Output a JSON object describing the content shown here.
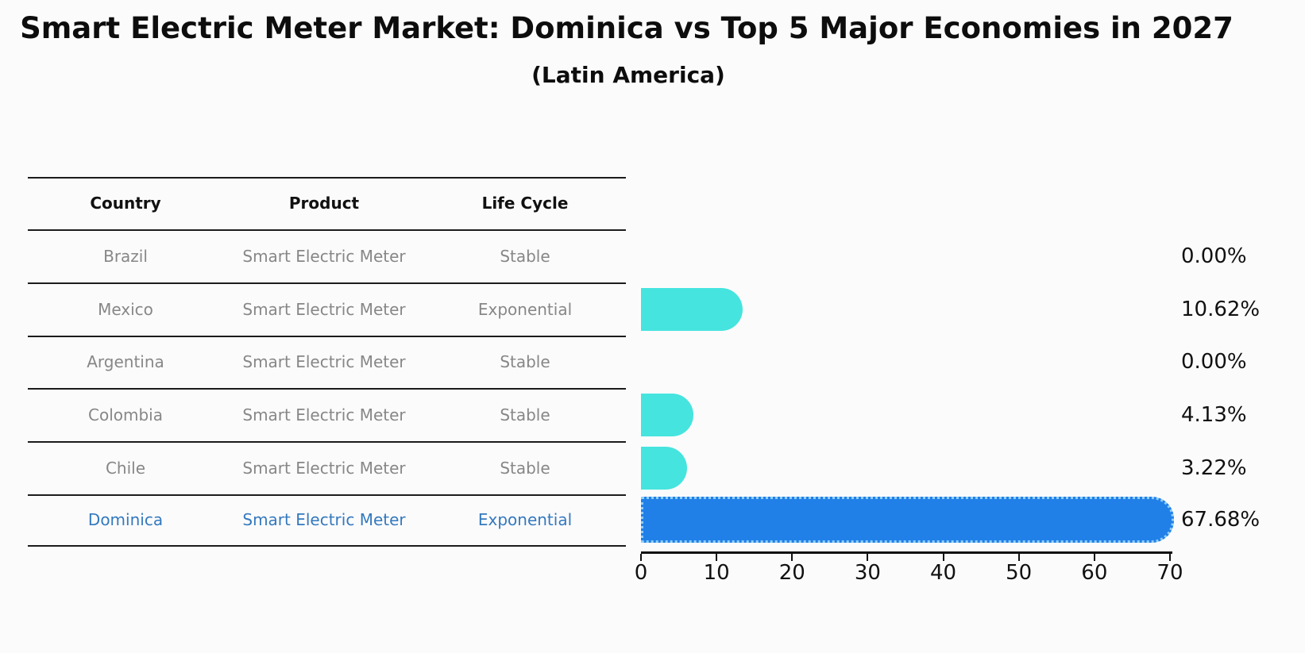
{
  "header": {
    "title": "Smart Electric Meter Market: Dominica vs Top 5 Major Economies in 2027",
    "subtitle": "(Latin America)"
  },
  "table": {
    "headers": [
      "Country",
      "Product",
      "Life Cycle"
    ],
    "rows": [
      {
        "country": "Brazil",
        "product": "Smart Electric Meter",
        "life_cycle": "Stable",
        "highlighted": false
      },
      {
        "country": "Mexico",
        "product": "Smart Electric Meter",
        "life_cycle": "Exponential",
        "highlighted": false
      },
      {
        "country": "Argentina",
        "product": "Smart Electric Meter",
        "life_cycle": "Stable",
        "highlighted": false
      },
      {
        "country": "Colombia",
        "product": "Smart Electric Meter",
        "life_cycle": "Stable",
        "highlighted": false
      },
      {
        "country": "Chile",
        "product": "Smart Electric Meter",
        "life_cycle": "Stable",
        "highlighted": false
      },
      {
        "country": "Dominica",
        "product": "Smart Electric Meter",
        "life_cycle": "Exponential",
        "highlighted": true
      }
    ]
  },
  "chart_data": {
    "type": "bar",
    "orientation": "horizontal",
    "title": "Smart Electric Meter Market: Dominica vs Top 5 Major Economies in 2027 (Latin America)",
    "categories": [
      "Brazil",
      "Mexico",
      "Argentina",
      "Colombia",
      "Chile",
      "Dominica"
    ],
    "values": [
      0.0,
      10.62,
      0.0,
      4.13,
      3.22,
      67.68
    ],
    "value_labels": [
      "0.00%",
      "10.62%",
      "0.00%",
      "4.13%",
      "3.22%",
      "67.68%"
    ],
    "xlim": [
      0,
      70
    ],
    "xticks": [
      0,
      10,
      20,
      30,
      40,
      50,
      60,
      70
    ],
    "grid": false,
    "highlight_index": 5
  },
  "colors": {
    "bar": "#45E4DE",
    "highlight_bar": "#2080E8",
    "highlight_edge": "#8FCEF8",
    "highlight_text": "#3379BE",
    "table_text": "#878787",
    "axis": "#111111"
  }
}
